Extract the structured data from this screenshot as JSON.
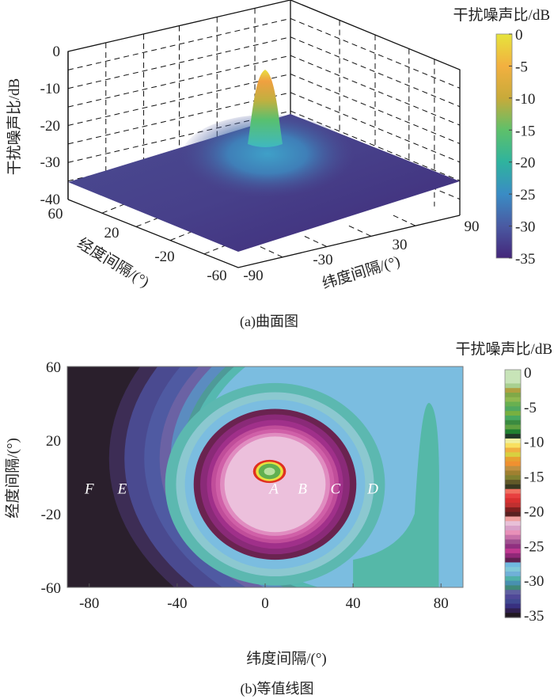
{
  "chart_data": [
    {
      "type": "surface",
      "caption": "(a)曲面图",
      "xlabel": "纬度间隔/(°)",
      "ylabel": "经度间隔/(°)",
      "zlabel": "干扰噪声比/dB",
      "xticks": [
        "-90",
        "-30",
        "30",
        "90"
      ],
      "yticks": [
        "60",
        "20",
        "-20",
        "-60"
      ],
      "zticks": [
        "0",
        "-10",
        "-20",
        "-30",
        "-40"
      ],
      "xlim": [
        -90,
        90
      ],
      "ylim": [
        -60,
        60
      ],
      "zlim": [
        -40,
        0
      ],
      "peak": {
        "x": 0,
        "y": 0,
        "z": -3
      },
      "background_level": -35,
      "grid": true,
      "colorbar": {
        "title": "干扰噪声比/dB",
        "ticks": [
          "0",
          "-5",
          "-10",
          "-15",
          "-20",
          "-25",
          "-30",
          "-35"
        ],
        "range": [
          -35,
          0
        ],
        "colors": [
          "#e6e43c",
          "#f2b040",
          "#c8aa3a",
          "#5ec06a",
          "#2fb39e",
          "#3a8cc4",
          "#4a5aa2",
          "#44267a"
        ]
      }
    },
    {
      "type": "contour",
      "caption": "(b)等值线图",
      "xlabel": "纬度间隔/(°)",
      "ylabel": "经度间隔/(°)",
      "xticks": [
        "-80",
        "-40",
        "0",
        "40",
        "80"
      ],
      "yticks": [
        "60",
        "20",
        "-20",
        "-60"
      ],
      "xlim": [
        -90,
        90
      ],
      "ylim": [
        -60,
        60
      ],
      "region_labels": [
        {
          "text": "F",
          "x": -80,
          "y": -9
        },
        {
          "text": "E",
          "x": -65,
          "y": -9
        },
        {
          "text": "A",
          "x": 4,
          "y": -9
        },
        {
          "text": "B",
          "x": 17,
          "y": -9
        },
        {
          "text": "C",
          "x": 32,
          "y": -9
        },
        {
          "text": "D",
          "x": 49,
          "y": -9
        }
      ],
      "colorbar": {
        "title": "干扰噪声比/dB",
        "ticks": [
          "0",
          "-5",
          "-10",
          "-15",
          "-20",
          "-25",
          "-30",
          "-35"
        ],
        "range": [
          -35,
          0
        ],
        "colors": [
          "#c8e4b8",
          "#c8e4b8",
          "#c8e4b8",
          "#a8d090",
          "#b0a040",
          "#80a848",
          "#90b850",
          "#68b050",
          "#50a860",
          "#78b040",
          "#48a860",
          "#3a8a40",
          "#60a040",
          "#208030",
          "#203828",
          "#f0f0a0",
          "#f8e060",
          "#f0b040",
          "#d8d040",
          "#e8a030",
          "#f09030",
          "#c09040",
          "#a08030",
          "#808030",
          "#605828",
          "#383820",
          "#f07060",
          "#e84040",
          "#d83030",
          "#c03030",
          "#802020",
          "#5a2020",
          "#f0a0a0",
          "#e8c0d8",
          "#d8a0c8",
          "#e890b8",
          "#c870a8",
          "#a05090",
          "#903080",
          "#c03890",
          "#902878",
          "#602050",
          "#70b8e0",
          "#80c8d8",
          "#70b0d8",
          "#50b0a8",
          "#4890b0",
          "#408878",
          "#6060a0",
          "#504898",
          "#404890",
          "#383080",
          "#302050",
          "#201820"
        ]
      },
      "band_colors": {
        "outer": [
          "#2a1f2c",
          "#3d2d55",
          "#4a4a90",
          "#4f5aa2",
          "#6b62a4",
          "#5b8cc0",
          "#4e9a98",
          "#55b8b0",
          "#7bbde0"
        ],
        "ring": [
          "#5cb8b0",
          "#8cc8d0",
          "#7bbde0",
          "#6a2350",
          "#8a2a78",
          "#a0308a",
          "#c04d9a",
          "#d060a8",
          "#e08cc0",
          "#ecc0dc"
        ],
        "core": [
          "#e03020",
          "#e8e040",
          "#60b050",
          "#b8e0a0"
        ],
        "right_lobe": "#55b8a8"
      }
    }
  ]
}
